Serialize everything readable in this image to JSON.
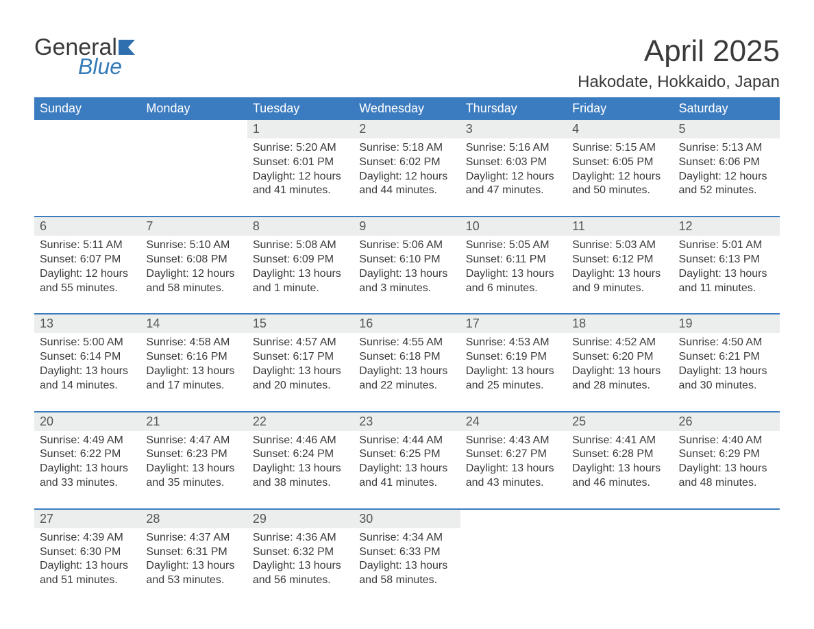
{
  "brand": {
    "word1": "General",
    "word2": "Blue",
    "flag_color": "#2f6fb0"
  },
  "title": "April 2025",
  "location": "Hakodate, Hokkaido, Japan",
  "colors": {
    "header_bg": "#3b7bbf",
    "header_fg": "#ffffff",
    "daynum_bg": "#eceded",
    "row_border": "#3b7bbf",
    "text": "#3a3a3a",
    "background": "#ffffff"
  },
  "typography": {
    "title_fontsize": 44,
    "location_fontsize": 24,
    "header_fontsize": 18,
    "daynum_fontsize": 18,
    "detail_fontsize": 16,
    "font_family": "Arial"
  },
  "day_labels": [
    "Sunday",
    "Monday",
    "Tuesday",
    "Wednesday",
    "Thursday",
    "Friday",
    "Saturday"
  ],
  "weeks": [
    [
      null,
      null,
      {
        "d": "1",
        "sr": "Sunrise: 5:20 AM",
        "ss": "Sunset: 6:01 PM",
        "dl1": "Daylight: 12 hours",
        "dl2": "and 41 minutes."
      },
      {
        "d": "2",
        "sr": "Sunrise: 5:18 AM",
        "ss": "Sunset: 6:02 PM",
        "dl1": "Daylight: 12 hours",
        "dl2": "and 44 minutes."
      },
      {
        "d": "3",
        "sr": "Sunrise: 5:16 AM",
        "ss": "Sunset: 6:03 PM",
        "dl1": "Daylight: 12 hours",
        "dl2": "and 47 minutes."
      },
      {
        "d": "4",
        "sr": "Sunrise: 5:15 AM",
        "ss": "Sunset: 6:05 PM",
        "dl1": "Daylight: 12 hours",
        "dl2": "and 50 minutes."
      },
      {
        "d": "5",
        "sr": "Sunrise: 5:13 AM",
        "ss": "Sunset: 6:06 PM",
        "dl1": "Daylight: 12 hours",
        "dl2": "and 52 minutes."
      }
    ],
    [
      {
        "d": "6",
        "sr": "Sunrise: 5:11 AM",
        "ss": "Sunset: 6:07 PM",
        "dl1": "Daylight: 12 hours",
        "dl2": "and 55 minutes."
      },
      {
        "d": "7",
        "sr": "Sunrise: 5:10 AM",
        "ss": "Sunset: 6:08 PM",
        "dl1": "Daylight: 12 hours",
        "dl2": "and 58 minutes."
      },
      {
        "d": "8",
        "sr": "Sunrise: 5:08 AM",
        "ss": "Sunset: 6:09 PM",
        "dl1": "Daylight: 13 hours",
        "dl2": "and 1 minute."
      },
      {
        "d": "9",
        "sr": "Sunrise: 5:06 AM",
        "ss": "Sunset: 6:10 PM",
        "dl1": "Daylight: 13 hours",
        "dl2": "and 3 minutes."
      },
      {
        "d": "10",
        "sr": "Sunrise: 5:05 AM",
        "ss": "Sunset: 6:11 PM",
        "dl1": "Daylight: 13 hours",
        "dl2": "and 6 minutes."
      },
      {
        "d": "11",
        "sr": "Sunrise: 5:03 AM",
        "ss": "Sunset: 6:12 PM",
        "dl1": "Daylight: 13 hours",
        "dl2": "and 9 minutes."
      },
      {
        "d": "12",
        "sr": "Sunrise: 5:01 AM",
        "ss": "Sunset: 6:13 PM",
        "dl1": "Daylight: 13 hours",
        "dl2": "and 11 minutes."
      }
    ],
    [
      {
        "d": "13",
        "sr": "Sunrise: 5:00 AM",
        "ss": "Sunset: 6:14 PM",
        "dl1": "Daylight: 13 hours",
        "dl2": "and 14 minutes."
      },
      {
        "d": "14",
        "sr": "Sunrise: 4:58 AM",
        "ss": "Sunset: 6:16 PM",
        "dl1": "Daylight: 13 hours",
        "dl2": "and 17 minutes."
      },
      {
        "d": "15",
        "sr": "Sunrise: 4:57 AM",
        "ss": "Sunset: 6:17 PM",
        "dl1": "Daylight: 13 hours",
        "dl2": "and 20 minutes."
      },
      {
        "d": "16",
        "sr": "Sunrise: 4:55 AM",
        "ss": "Sunset: 6:18 PM",
        "dl1": "Daylight: 13 hours",
        "dl2": "and 22 minutes."
      },
      {
        "d": "17",
        "sr": "Sunrise: 4:53 AM",
        "ss": "Sunset: 6:19 PM",
        "dl1": "Daylight: 13 hours",
        "dl2": "and 25 minutes."
      },
      {
        "d": "18",
        "sr": "Sunrise: 4:52 AM",
        "ss": "Sunset: 6:20 PM",
        "dl1": "Daylight: 13 hours",
        "dl2": "and 28 minutes."
      },
      {
        "d": "19",
        "sr": "Sunrise: 4:50 AM",
        "ss": "Sunset: 6:21 PM",
        "dl1": "Daylight: 13 hours",
        "dl2": "and 30 minutes."
      }
    ],
    [
      {
        "d": "20",
        "sr": "Sunrise: 4:49 AM",
        "ss": "Sunset: 6:22 PM",
        "dl1": "Daylight: 13 hours",
        "dl2": "and 33 minutes."
      },
      {
        "d": "21",
        "sr": "Sunrise: 4:47 AM",
        "ss": "Sunset: 6:23 PM",
        "dl1": "Daylight: 13 hours",
        "dl2": "and 35 minutes."
      },
      {
        "d": "22",
        "sr": "Sunrise: 4:46 AM",
        "ss": "Sunset: 6:24 PM",
        "dl1": "Daylight: 13 hours",
        "dl2": "and 38 minutes."
      },
      {
        "d": "23",
        "sr": "Sunrise: 4:44 AM",
        "ss": "Sunset: 6:25 PM",
        "dl1": "Daylight: 13 hours",
        "dl2": "and 41 minutes."
      },
      {
        "d": "24",
        "sr": "Sunrise: 4:43 AM",
        "ss": "Sunset: 6:27 PM",
        "dl1": "Daylight: 13 hours",
        "dl2": "and 43 minutes."
      },
      {
        "d": "25",
        "sr": "Sunrise: 4:41 AM",
        "ss": "Sunset: 6:28 PM",
        "dl1": "Daylight: 13 hours",
        "dl2": "and 46 minutes."
      },
      {
        "d": "26",
        "sr": "Sunrise: 4:40 AM",
        "ss": "Sunset: 6:29 PM",
        "dl1": "Daylight: 13 hours",
        "dl2": "and 48 minutes."
      }
    ],
    [
      {
        "d": "27",
        "sr": "Sunrise: 4:39 AM",
        "ss": "Sunset: 6:30 PM",
        "dl1": "Daylight: 13 hours",
        "dl2": "and 51 minutes."
      },
      {
        "d": "28",
        "sr": "Sunrise: 4:37 AM",
        "ss": "Sunset: 6:31 PM",
        "dl1": "Daylight: 13 hours",
        "dl2": "and 53 minutes."
      },
      {
        "d": "29",
        "sr": "Sunrise: 4:36 AM",
        "ss": "Sunset: 6:32 PM",
        "dl1": "Daylight: 13 hours",
        "dl2": "and 56 minutes."
      },
      {
        "d": "30",
        "sr": "Sunrise: 4:34 AM",
        "ss": "Sunset: 6:33 PM",
        "dl1": "Daylight: 13 hours",
        "dl2": "and 58 minutes."
      },
      null,
      null,
      null
    ]
  ]
}
